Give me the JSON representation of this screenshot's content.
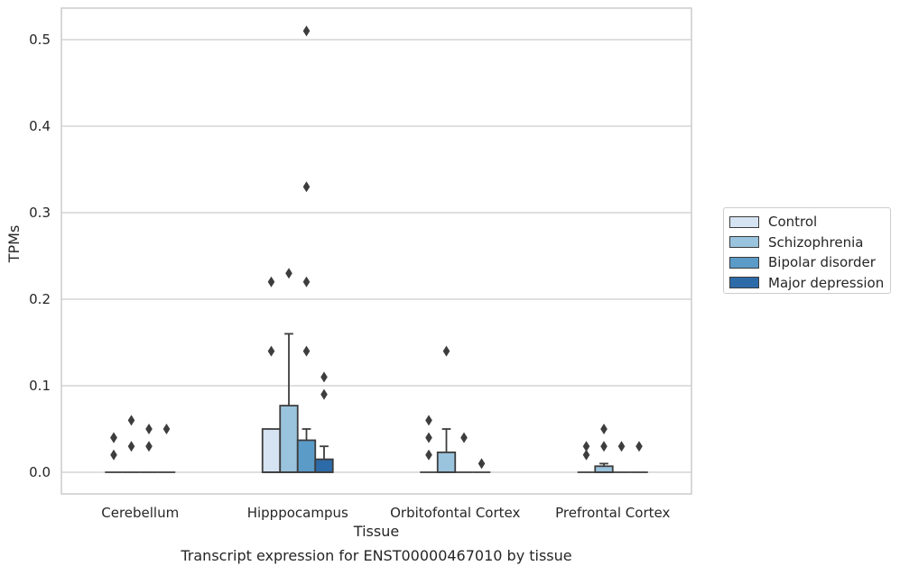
{
  "chart_data": {
    "type": "box",
    "title": "Transcript expression for ENST00000467010 by tissue",
    "xlabel": "Tissue",
    "ylabel": "TPMs",
    "ylim": [
      -0.025,
      0.537
    ],
    "yticks": [
      0.0,
      0.1,
      0.2,
      0.3,
      0.4,
      0.5
    ],
    "ytick_labels": [
      "0.0",
      "0.1",
      "0.2",
      "0.3",
      "0.4",
      "0.5"
    ],
    "grid": true,
    "legend_position": "right",
    "categories": [
      "Cerebellum",
      "Hipppocampus",
      "Orbitofontal Cortex",
      "Prefrontal Cortex"
    ],
    "series": [
      {
        "name": "Control",
        "color": "#d5e3f2",
        "boxes": [
          {
            "q1": 0,
            "median": 0,
            "q3": 0,
            "whisker_low": 0,
            "whisker_high": 0,
            "outliers": [
              0.02,
              0.04,
              0.04
            ]
          },
          {
            "q1": 0,
            "median": 0,
            "q3": 0.05,
            "whisker_low": 0,
            "whisker_high": 0.05,
            "outliers": [
              0.14,
              0.22
            ]
          },
          {
            "q1": 0,
            "median": 0,
            "q3": 0,
            "whisker_low": 0,
            "whisker_high": 0,
            "outliers": [
              0.02,
              0.04,
              0.06
            ]
          },
          {
            "q1": 0,
            "median": 0,
            "q3": 0,
            "whisker_low": 0,
            "whisker_high": 0,
            "outliers": [
              0.02,
              0.03
            ]
          }
        ]
      },
      {
        "name": "Schizophrenia",
        "color": "#9ac3dd",
        "boxes": [
          {
            "q1": 0,
            "median": 0,
            "q3": 0,
            "whisker_low": 0,
            "whisker_high": 0,
            "outliers": [
              0.03,
              0.06
            ]
          },
          {
            "q1": 0,
            "median": 0,
            "q3": 0.077,
            "whisker_low": 0,
            "whisker_high": 0.16,
            "outliers": [
              0.23
            ]
          },
          {
            "q1": 0,
            "median": 0,
            "q3": 0.023,
            "whisker_low": 0,
            "whisker_high": 0.05,
            "outliers": [
              0.14
            ]
          },
          {
            "q1": 0,
            "median": 0,
            "q3": 0.007,
            "whisker_low": 0,
            "whisker_high": 0.01,
            "outliers": [
              0.03,
              0.05
            ]
          }
        ]
      },
      {
        "name": "Bipolar disorder",
        "color": "#5b9bc8",
        "boxes": [
          {
            "q1": 0,
            "median": 0,
            "q3": 0,
            "whisker_low": 0,
            "whisker_high": 0,
            "outliers": [
              0.03,
              0.05
            ]
          },
          {
            "q1": 0,
            "median": 0,
            "q3": 0.037,
            "whisker_low": 0,
            "whisker_high": 0.05,
            "outliers": [
              0.14,
              0.22,
              0.33,
              0.51
            ]
          },
          {
            "q1": 0,
            "median": 0,
            "q3": 0,
            "whisker_low": 0,
            "whisker_high": 0,
            "outliers": [
              0.04
            ]
          },
          {
            "q1": 0,
            "median": 0,
            "q3": 0,
            "whisker_low": 0,
            "whisker_high": 0,
            "outliers": [
              0.03
            ]
          }
        ]
      },
      {
        "name": "Major depression",
        "color": "#2d6ba8",
        "boxes": [
          {
            "q1": 0,
            "median": 0,
            "q3": 0,
            "whisker_low": 0,
            "whisker_high": 0,
            "outliers": [
              0.05
            ]
          },
          {
            "q1": 0,
            "median": 0,
            "q3": 0.015,
            "whisker_low": 0,
            "whisker_high": 0.03,
            "outliers": [
              0.09,
              0.11
            ]
          },
          {
            "q1": 0,
            "median": 0,
            "q3": 0,
            "whisker_low": 0,
            "whisker_high": 0,
            "outliers": [
              0.01
            ]
          },
          {
            "q1": 0,
            "median": 0,
            "q3": 0,
            "whisker_low": 0,
            "whisker_high": 0,
            "outliers": [
              0.03
            ]
          }
        ]
      }
    ]
  }
}
